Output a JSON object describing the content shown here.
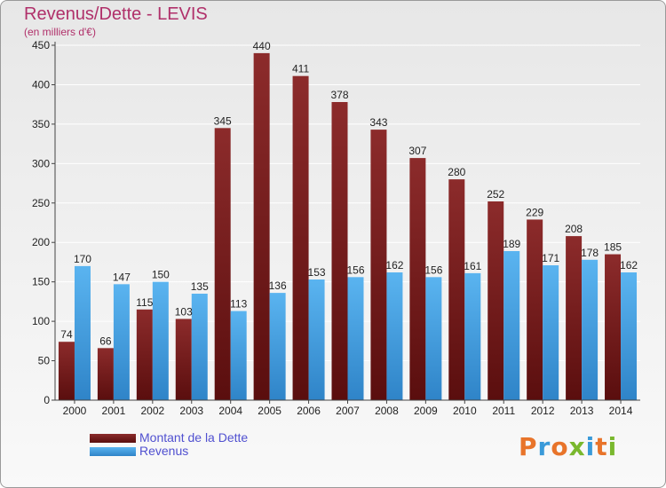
{
  "header": {
    "title": "Revenus/Dette - LEVIS",
    "subtitle": "(en milliers d'€)"
  },
  "legend": {
    "items": [
      {
        "label": "Montant de la Dette",
        "color": "#7a1a1a"
      },
      {
        "label": "Revenus",
        "color": "#4aa3e6"
      }
    ]
  },
  "logo": {
    "text": "Proxiti",
    "letters": [
      {
        "char": "P",
        "color": "#e8742a"
      },
      {
        "char": "r",
        "color": "#3a9ad9"
      },
      {
        "char": "o",
        "color": "#e8742a"
      },
      {
        "char": "x",
        "color": "#7ab82e"
      },
      {
        "char": "i",
        "color": "#3a9ad9"
      },
      {
        "char": "t",
        "color": "#e8742a"
      },
      {
        "char": "i",
        "color": "#7ab82e"
      }
    ]
  },
  "chart_data": {
    "type": "bar",
    "title": "Revenus/Dette - LEVIS",
    "subtitle": "(en milliers d'€)",
    "categories": [
      "2000",
      "2001",
      "2002",
      "2003",
      "2004",
      "2005",
      "2006",
      "2007",
      "2008",
      "2009",
      "2010",
      "2011",
      "2012",
      "2013",
      "2014"
    ],
    "series": [
      {
        "name": "Montant de la Dette",
        "color": "#7a1a1a",
        "values": [
          74,
          66,
          115,
          103,
          345,
          440,
          411,
          378,
          343,
          307,
          280,
          252,
          229,
          208,
          185
        ]
      },
      {
        "name": "Revenus",
        "color": "#4aa3e6",
        "values": [
          170,
          147,
          150,
          135,
          113,
          136,
          153,
          156,
          162,
          156,
          161,
          189,
          171,
          178,
          162
        ]
      }
    ],
    "ylim": [
      0,
      450
    ],
    "yticks": [
      0,
      50,
      100,
      150,
      200,
      250,
      300,
      350,
      400,
      450
    ],
    "grid": true,
    "legend_position": "bottom-left"
  }
}
